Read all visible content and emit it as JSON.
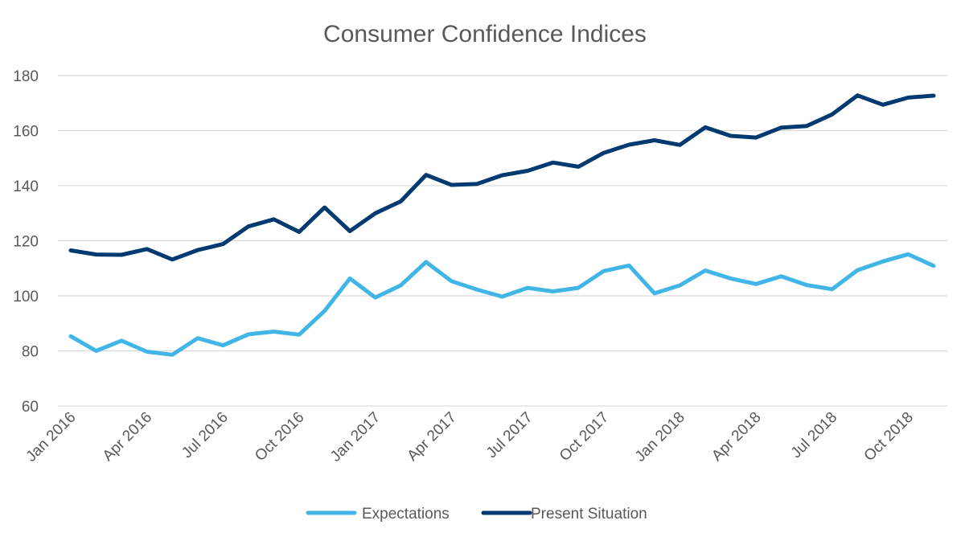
{
  "chart_data": {
    "type": "line",
    "title": "Consumer Confidence Indices",
    "xlabel": "",
    "ylabel": "",
    "ylim": [
      60,
      180
    ],
    "y_ticks": [
      60,
      80,
      100,
      120,
      140,
      160,
      180
    ],
    "grid": true,
    "legend_placement": "bottom",
    "x": [
      "Jan 2016",
      "Feb 2016",
      "Mar 2016",
      "Apr 2016",
      "May 2016",
      "Jun 2016",
      "Jul 2016",
      "Aug 2016",
      "Sep 2016",
      "Oct 2016",
      "Nov 2016",
      "Dec 2016",
      "Jan 2017",
      "Feb 2017",
      "Mar 2017",
      "Apr 2017",
      "May 2017",
      "Jun 2017",
      "Jul 2017",
      "Aug 2017",
      "Sep 2017",
      "Oct 2017",
      "Nov 2017",
      "Dec 2017",
      "Jan 2018",
      "Feb 2018",
      "Mar 2018",
      "Apr 2018",
      "May 2018",
      "Jun 2018",
      "Jul 2018",
      "Aug 2018",
      "Sep 2018",
      "Oct 2018",
      "Nov 2018"
    ],
    "x_tick_labels": [
      "Jan 2016",
      "Apr 2016",
      "Jul 2016",
      "Oct 2016",
      "Jan 2017",
      "Apr 2017",
      "Jul 2017",
      "Oct 2017",
      "Jan 2018",
      "Apr 2018",
      "Jul 2018",
      "Oct 2018"
    ],
    "series": [
      {
        "name": "Expectations",
        "color": "#41b6e6",
        "values": [
          85.3,
          80.0,
          83.7,
          79.7,
          78.6,
          84.6,
          82.0,
          86.0,
          87.0,
          85.9,
          94.5,
          106.3,
          99.4,
          103.8,
          112.3,
          105.3,
          102.3,
          99.7,
          102.9,
          101.6,
          102.9,
          109.0,
          111.0,
          100.9,
          103.8,
          109.2,
          106.3,
          104.3,
          107.1,
          103.9,
          102.4,
          109.3,
          112.5,
          115.1,
          110.9
        ]
      },
      {
        "name": "Present Situation",
        "color": "#003a70",
        "values": [
          116.5,
          115.0,
          114.9,
          117.0,
          113.2,
          116.6,
          118.8,
          125.2,
          127.8,
          123.2,
          132.1,
          123.5,
          130.0,
          134.3,
          143.9,
          140.3,
          140.6,
          143.8,
          145.4,
          148.4,
          146.9,
          151.9,
          154.9,
          156.5,
          154.8,
          161.2,
          158.1,
          157.5,
          161.1,
          161.7,
          165.9,
          172.8,
          169.4,
          172.0,
          172.7
        ]
      }
    ]
  }
}
